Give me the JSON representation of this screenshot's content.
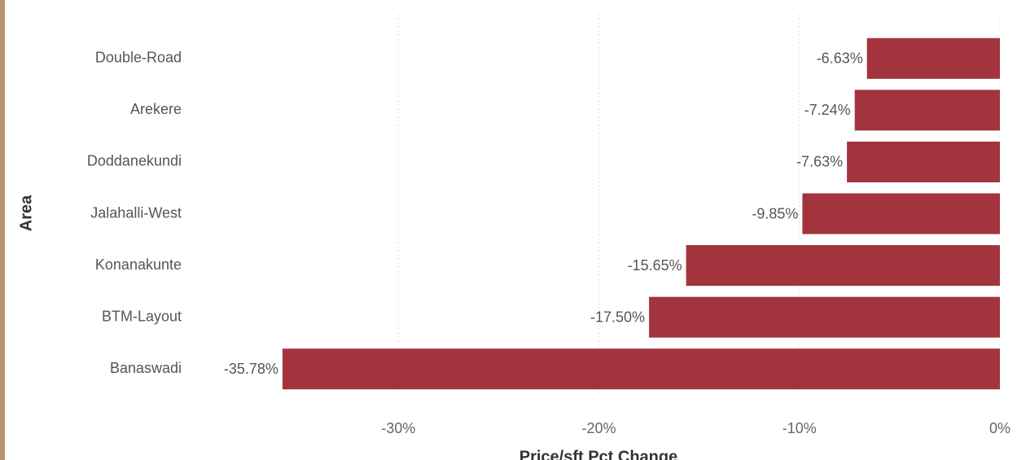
{
  "chart_data": {
    "type": "bar",
    "orientation": "horizontal",
    "x_label": "Price/sft Pct Change",
    "y_label": "Area",
    "categories": [
      "Double-Road",
      "Arekere",
      "Doddanekundi",
      "Jalahalli-West",
      "Konanakunte",
      "BTM-Layout",
      "Banaswadi"
    ],
    "values": [
      -6.63,
      -7.24,
      -7.63,
      -9.85,
      -15.65,
      -17.5,
      -35.78
    ],
    "value_labels": [
      "-6.63%",
      "-7.24%",
      "-7.63%",
      "-9.85%",
      "-15.65%",
      "-17.50%",
      "-35.78%"
    ],
    "color": "#a3333d",
    "xlim": [
      -40,
      0
    ],
    "xticks": [
      {
        "value": -30,
        "label": "-30%"
      },
      {
        "value": -20,
        "label": "-20%"
      },
      {
        "value": -10,
        "label": "-10%"
      },
      {
        "value": 0,
        "label": "0%"
      }
    ],
    "grid": true
  }
}
